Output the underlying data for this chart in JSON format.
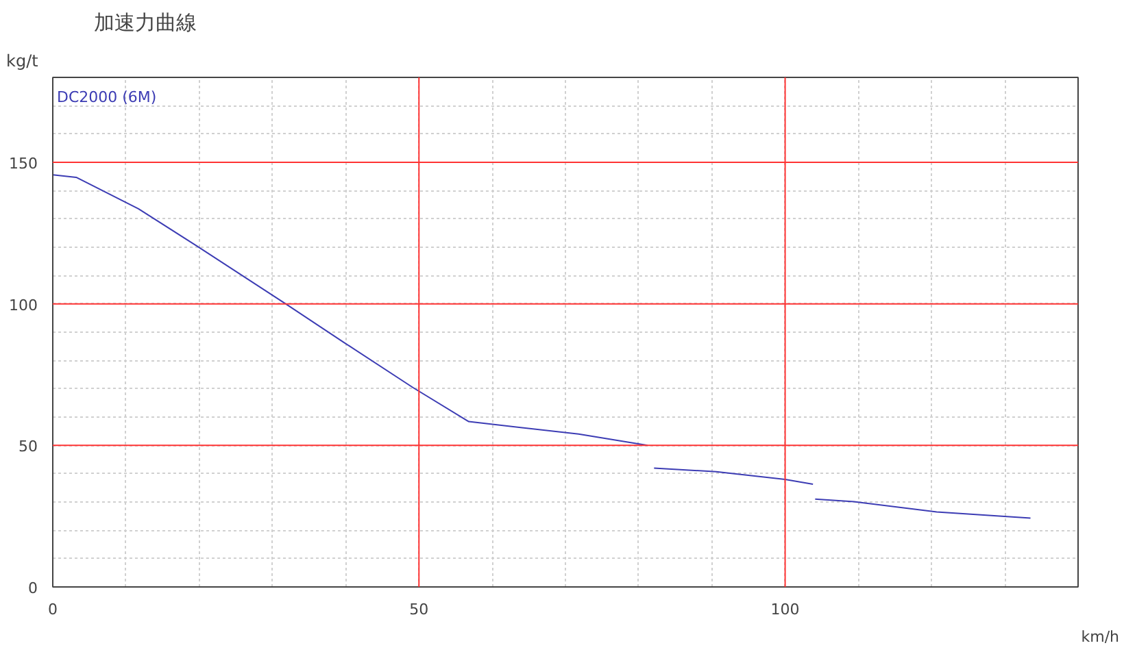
{
  "chart_data": {
    "type": "line",
    "title": "加速力曲線",
    "xlabel": "km/h",
    "ylabel": "kg/t",
    "x": [
      0,
      3.2,
      11.7,
      19.7,
      31.8,
      39.8,
      49.2,
      56.8,
      71.8,
      81.2,
      81.6,
      82.1,
      90.6,
      100,
      103.8,
      103.9,
      104.1,
      109.4,
      120.7,
      133.5
    ],
    "series": [
      {
        "name": "DC2000 (6M)",
        "color": "#3c3cb4",
        "values": [
          145.6,
          144.7,
          133.6,
          120.4,
          100,
          86.3,
          70.4,
          58.4,
          54,
          50,
          null,
          42,
          40.7,
          38,
          36.3,
          null,
          31,
          30.1,
          26.5,
          24.3
        ]
      }
    ],
    "xlim": [
      0,
      140
    ],
    "ylim": [
      0,
      180
    ],
    "xticks": [
      0,
      {
        "value": 10,
        "label": null
      },
      {
        "value": 20,
        "label": null
      },
      {
        "value": 30,
        "label": null
      },
      {
        "value": 40,
        "label": null
      },
      50,
      {
        "value": 60,
        "label": null
      },
      {
        "value": 70,
        "label": null
      },
      {
        "value": 80,
        "label": null
      },
      {
        "value": 90,
        "label": null
      },
      100,
      {
        "value": 110,
        "label": null
      },
      {
        "value": 120,
        "label": null
      },
      {
        "value": 130,
        "label": null
      }
    ],
    "yticks": [
      0,
      {
        "value": 10,
        "label": null
      },
      {
        "value": 20,
        "label": null
      },
      {
        "value": 30,
        "label": null
      },
      {
        "value": 40,
        "label": null
      },
      50,
      {
        "value": 60,
        "label": null
      },
      {
        "value": 70,
        "label": null
      },
      {
        "value": 80,
        "label": null
      },
      {
        "value": 90,
        "label": null
      },
      100,
      {
        "value": 110,
        "label": null
      },
      {
        "value": 120,
        "label": null
      },
      {
        "value": 130,
        "label": null
      },
      {
        "value": 140,
        "label": null
      },
      150,
      {
        "value": 160,
        "label": null
      },
      {
        "value": 170,
        "label": null
      }
    ],
    "grid": true,
    "marker": "none",
    "line_style": "solid"
  }
}
